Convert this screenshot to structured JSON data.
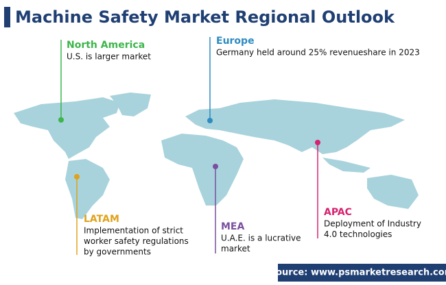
{
  "header": {
    "title": "Machine Safety Market Regional Outlook"
  },
  "regions": [
    {
      "name": "North America",
      "color": "#3cb54a",
      "lines": [
        "U.S. is larger market"
      ]
    },
    {
      "name": "Europe",
      "color": "#2e8bc0",
      "lines": [
        "Germany held around 25% revenueshare in 2023"
      ]
    },
    {
      "name": "LATAM",
      "color": "#e0a21a",
      "lines": [
        "Implementation of strict",
        "worker safety regulations",
        "by governments"
      ]
    },
    {
      "name": "MEA",
      "color": "#7b4f9e",
      "lines": [
        "U.A.E. is a lucrative",
        "market"
      ]
    },
    {
      "name": "APAC",
      "color": "#d6226f",
      "lines": [
        "Deployment of Industry",
        "4.0 technologies"
      ]
    }
  ],
  "footer": {
    "source": "Source: www.psmarketresearch.com"
  }
}
